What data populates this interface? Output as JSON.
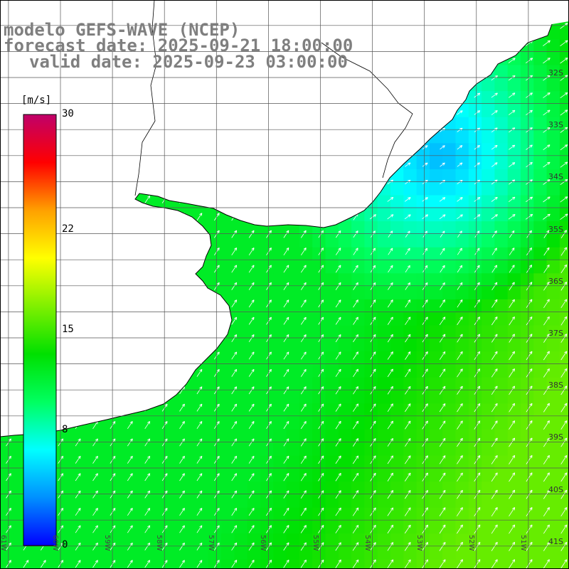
{
  "title": {
    "line1": "modelo GEFS-WAVE (NCEP)",
    "line2": "forecast date: 2025-09-21 18:00:00",
    "line3": "valid date: 2025-09-23 03:00:00"
  },
  "legend": {
    "unit": "[m/s]",
    "ticks": [
      "30",
      "22",
      "15",
      "8",
      "0"
    ],
    "tick_values": [
      30,
      22,
      15,
      8,
      0
    ],
    "min": 0,
    "max": 30,
    "colors": [
      "#0000ff",
      "#0090ff",
      "#00ffff",
      "#00ff60",
      "#00e000",
      "#80f000",
      "#ffff00",
      "#ffa000",
      "#ff0000",
      "#c0006a"
    ]
  },
  "map": {
    "lat_labels": [
      "32S",
      "33S",
      "34S",
      "35S",
      "36S",
      "37S",
      "38S",
      "39S",
      "40S",
      "41S"
    ],
    "lat_values": [
      -32,
      -33,
      -34,
      -35,
      -36,
      -37,
      -38,
      -39,
      -40,
      -41
    ],
    "lon_labels": [
      "61W",
      "60W",
      "59W",
      "58W",
      "57W",
      "56W",
      "55W",
      "54W",
      "53W",
      "52W",
      "51W"
    ],
    "lon_values": [
      -61,
      -60,
      -59,
      -58,
      -57,
      -56,
      -55,
      -54,
      -53,
      -52,
      -51
    ],
    "colors": {
      "land": "#ffffff",
      "coastline": "#000000",
      "grid": "#555555",
      "arrows": "#ffffff"
    },
    "field": {
      "variable": "wind speed",
      "unit": "m/s",
      "direction": "winds toward the north-east",
      "calm_zone_speed": 4,
      "open_ocean_speed": 12,
      "southeast_max_speed": 16
    }
  }
}
